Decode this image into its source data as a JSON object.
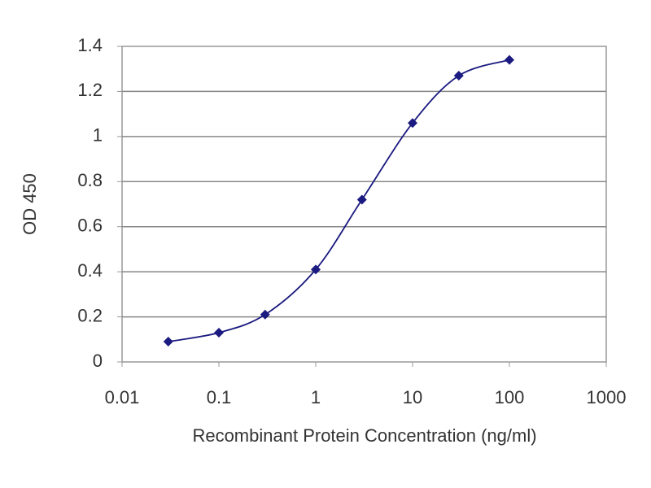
{
  "chart_data": {
    "type": "line",
    "x_label": "Recombinant Protein Concentration (ng/ml)",
    "y_label": "OD 450",
    "x": [
      0.03,
      0.1,
      0.3,
      1,
      3,
      10,
      30,
      100
    ],
    "series": [
      {
        "color": "#1a1a80",
        "values": [
          0.09,
          0.13,
          0.21,
          0.41,
          0.72,
          1.06,
          1.27,
          1.34
        ]
      }
    ],
    "xscale": "log",
    "xlim": [
      0.01,
      1000
    ],
    "xticks": [
      0.01,
      0.1,
      1,
      10,
      100,
      1000
    ],
    "ylim": [
      0,
      1.4
    ],
    "yticks": [
      0,
      0.2,
      0.4,
      0.6,
      0.8,
      1,
      1.2,
      1.4
    ],
    "grid": true
  }
}
